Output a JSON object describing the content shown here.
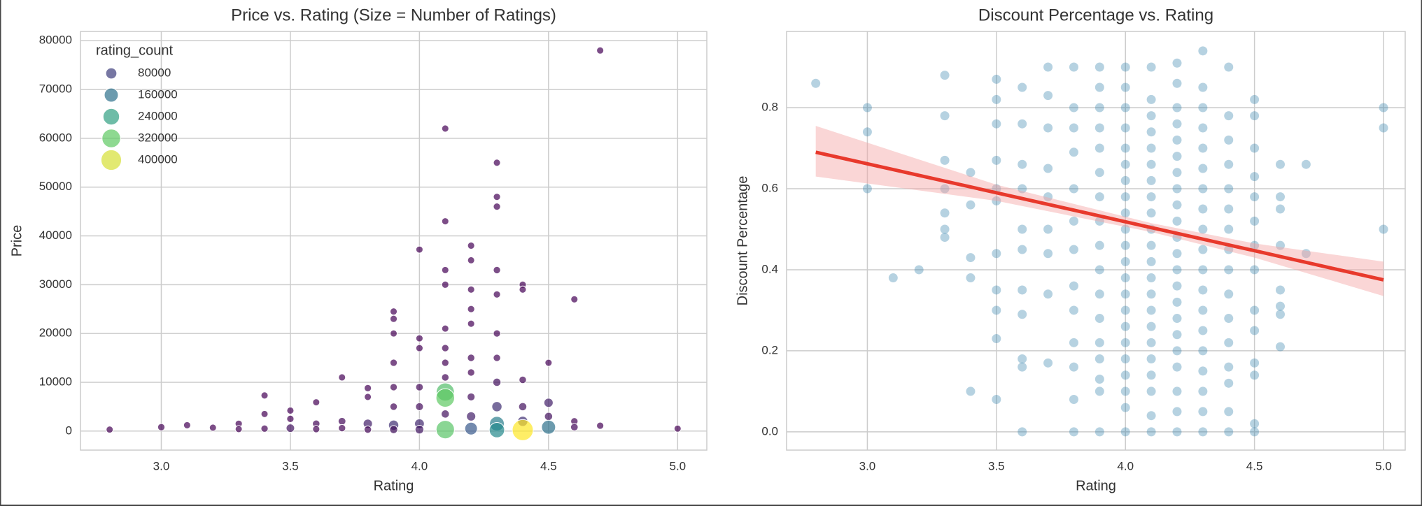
{
  "chart_data": [
    {
      "type": "scatter",
      "title": "Price vs. Rating (Size = Number of Ratings)",
      "xlabel": "Rating",
      "ylabel": "Price",
      "xlim": [
        2.687,
        5.113
      ],
      "ylim": [
        -3900,
        81900
      ],
      "xticks": [
        {
          "value": 3,
          "label": "3.0"
        },
        {
          "value": 3.5,
          "label": "3.5"
        },
        {
          "value": 4,
          "label": "4.0"
        },
        {
          "value": 4.5,
          "label": "4.5"
        },
        {
          "value": 5,
          "label": "5.0"
        }
      ],
      "yticks": [
        0,
        10000,
        20000,
        30000,
        40000,
        50000,
        60000,
        70000,
        80000
      ],
      "grid": true,
      "legend": "upper left",
      "colormap": [
        "#440154",
        "#3b528b",
        "#21918c",
        "#5ec962",
        "#fde725"
      ],
      "x": [
        2.8,
        3.0,
        3.1,
        3.2,
        3.3,
        3.3,
        3.4,
        3.4,
        3.4,
        3.5,
        3.5,
        3.5,
        3.6,
        3.6,
        3.6,
        3.7,
        3.7,
        3.7,
        3.8,
        3.8,
        3.8,
        3.8,
        3.9,
        3.9,
        3.9,
        3.9,
        3.9,
        3.9,
        3.9,
        3.9,
        4.0,
        4.0,
        4.0,
        4.0,
        4.0,
        4.0,
        4.0,
        4.1,
        4.1,
        4.1,
        4.1,
        4.1,
        4.1,
        4.1,
        4.1,
        4.1,
        4.1,
        4.1,
        4.1,
        4.2,
        4.2,
        4.2,
        4.2,
        4.2,
        4.2,
        4.2,
        4.2,
        4.2,
        4.2,
        4.3,
        4.3,
        4.3,
        4.3,
        4.3,
        4.3,
        4.3,
        4.3,
        4.3,
        4.3,
        4.3,
        4.4,
        4.4,
        4.4,
        4.4,
        4.4,
        4.4,
        4.5,
        4.5,
        4.5,
        4.5,
        4.6,
        4.6,
        4.6,
        4.7,
        4.7,
        5.0
      ],
      "series": [
        {
          "edgecolor": "#ffffff",
          "values": [
            300,
            800,
            1200,
            700,
            1500,
            400,
            7300,
            3500,
            500,
            4200,
            2500,
            600,
            5900,
            1500,
            400,
            11000,
            2000,
            600,
            8800,
            7000,
            1500,
            300,
            24500,
            23000,
            20000,
            14000,
            9000,
            5000,
            1200,
            300,
            37200,
            19000,
            17000,
            9000,
            5000,
            1500,
            300,
            62000,
            43000,
            33000,
            30000,
            21000,
            17000,
            14000,
            11000,
            8000,
            6800,
            300,
            3500,
            38000,
            35000,
            29000,
            25000,
            22000,
            15000,
            12000,
            7000,
            3000,
            500,
            55000,
            48000,
            46000,
            33000,
            28000,
            20000,
            15000,
            10000,
            5000,
            1500,
            200,
            30000,
            29000,
            10500,
            5000,
            2000,
            200,
            14000,
            5800,
            3000,
            800,
            27000,
            2000,
            800,
            78000,
            1100,
            500
          ],
          "sizes": [
            2000,
            5000,
            3000,
            2000,
            4000,
            2000,
            3000,
            2000,
            5000,
            3000,
            5000,
            25000,
            2000,
            8000,
            4000,
            3000,
            12000,
            6000,
            5000,
            3000,
            40000,
            8000,
            3000,
            4000,
            2000,
            5000,
            6000,
            8000,
            60000,
            20000,
            2000,
            3000,
            4000,
            10000,
            15000,
            50000,
            30000,
            3000,
            2000,
            3000,
            4000,
            2000,
            6000,
            5000,
            8000,
            300000,
            320000,
            310000,
            20000,
            3000,
            2000,
            4000,
            5000,
            3000,
            8000,
            6000,
            15000,
            40000,
            120000,
            3000,
            4000,
            5000,
            6000,
            4000,
            5000,
            7000,
            20000,
            60000,
            180000,
            200000,
            4000,
            3000,
            8000,
            20000,
            60000,
            426000,
            3000,
            40000,
            20000,
            160000,
            3000,
            6000,
            10000,
            3000,
            4000,
            2000
          ]
        }
      ],
      "size_legend": {
        "title": "rating_count",
        "values": [
          80000,
          160000,
          240000,
          320000,
          400000
        ]
      }
    },
    {
      "type": "scatter",
      "title": "Discount Percentage vs. Rating",
      "xlabel": "Rating",
      "ylabel": "Discount Percentage",
      "xlim": [
        2.687,
        5.084
      ],
      "ylim": [
        -0.045,
        0.988
      ],
      "xticks": [
        {
          "value": 3,
          "label": "3.0"
        },
        {
          "value": 3.5,
          "label": "3.5"
        },
        {
          "value": 4,
          "label": "4.0"
        },
        {
          "value": 4.5,
          "label": "4.5"
        },
        {
          "value": 5,
          "label": "5.0"
        }
      ],
      "yticks": [
        {
          "value": 0,
          "label": "0.0"
        },
        0.2,
        0.4,
        0.6,
        0.8
      ],
      "grid": true,
      "x": [
        2.8,
        3.0,
        3.0,
        3.0,
        3.1,
        3.2,
        3.3,
        3.3,
        3.3,
        3.3,
        3.3,
        3.3,
        3.3,
        3.4,
        3.4,
        3.4,
        3.4,
        3.4,
        3.5,
        3.5,
        3.5,
        3.5,
        3.5,
        3.5,
        3.5,
        3.5,
        3.5,
        3.5,
        3.5,
        3.6,
        3.6,
        3.6,
        3.6,
        3.6,
        3.6,
        3.6,
        3.6,
        3.6,
        3.6,
        3.6,
        3.7,
        3.7,
        3.7,
        3.7,
        3.7,
        3.7,
        3.7,
        3.7,
        3.7,
        3.8,
        3.8,
        3.8,
        3.8,
        3.8,
        3.8,
        3.8,
        3.8,
        3.8,
        3.8,
        3.8,
        3.8,
        3.8,
        3.9,
        3.9,
        3.9,
        3.9,
        3.9,
        3.9,
        3.9,
        3.9,
        3.9,
        3.9,
        3.9,
        3.9,
        3.9,
        3.9,
        3.9,
        3.9,
        3.9,
        4.0,
        4.0,
        4.0,
        4.0,
        4.0,
        4.0,
        4.0,
        4.0,
        4.0,
        4.0,
        4.0,
        4.0,
        4.0,
        4.0,
        4.0,
        4.0,
        4.0,
        4.0,
        4.0,
        4.0,
        4.0,
        4.0,
        4.1,
        4.1,
        4.1,
        4.1,
        4.1,
        4.1,
        4.1,
        4.1,
        4.1,
        4.1,
        4.1,
        4.1,
        4.1,
        4.1,
        4.1,
        4.1,
        4.1,
        4.1,
        4.1,
        4.1,
        4.1,
        4.1,
        4.2,
        4.2,
        4.2,
        4.2,
        4.2,
        4.2,
        4.2,
        4.2,
        4.2,
        4.2,
        4.2,
        4.2,
        4.2,
        4.2,
        4.2,
        4.2,
        4.2,
        4.2,
        4.2,
        4.2,
        4.2,
        4.2,
        4.3,
        4.3,
        4.3,
        4.3,
        4.3,
        4.3,
        4.3,
        4.3,
        4.3,
        4.3,
        4.3,
        4.3,
        4.3,
        4.3,
        4.3,
        4.3,
        4.3,
        4.3,
        4.3,
        4.4,
        4.4,
        4.4,
        4.4,
        4.4,
        4.4,
        4.4,
        4.4,
        4.4,
        4.4,
        4.4,
        4.4,
        4.4,
        4.4,
        4.4,
        4.4,
        4.5,
        4.5,
        4.5,
        4.5,
        4.5,
        4.5,
        4.5,
        4.5,
        4.5,
        4.5,
        4.5,
        4.5,
        4.5,
        4.5,
        4.6,
        4.6,
        4.6,
        4.6,
        4.6,
        4.6,
        4.6,
        4.6,
        4.7,
        4.7,
        5.0,
        5.0,
        5.0
      ],
      "series": [
        {
          "color": "#2f7fa8",
          "values": [
            0.86,
            0.8,
            0.74,
            0.6,
            0.38,
            0.4,
            0.88,
            0.78,
            0.67,
            0.6,
            0.54,
            0.5,
            0.48,
            0.64,
            0.56,
            0.43,
            0.38,
            0.1,
            0.87,
            0.82,
            0.76,
            0.67,
            0.6,
            0.57,
            0.44,
            0.35,
            0.3,
            0.23,
            0.08,
            0.85,
            0.76,
            0.66,
            0.6,
            0.5,
            0.45,
            0.35,
            0.29,
            0.18,
            0.16,
            0.0,
            0.9,
            0.83,
            0.75,
            0.65,
            0.58,
            0.5,
            0.44,
            0.34,
            0.17,
            0.9,
            0.8,
            0.75,
            0.69,
            0.6,
            0.52,
            0.45,
            0.36,
            0.3,
            0.22,
            0.16,
            0.08,
            0.0,
            0.9,
            0.85,
            0.8,
            0.75,
            0.7,
            0.64,
            0.58,
            0.52,
            0.46,
            0.4,
            0.34,
            0.28,
            0.22,
            0.18,
            0.13,
            0.1,
            0.0,
            0.9,
            0.85,
            0.8,
            0.75,
            0.7,
            0.66,
            0.62,
            0.58,
            0.54,
            0.5,
            0.46,
            0.42,
            0.38,
            0.34,
            0.3,
            0.26,
            0.22,
            0.18,
            0.14,
            0.1,
            0.06,
            0.0,
            0.9,
            0.82,
            0.78,
            0.74,
            0.7,
            0.66,
            0.62,
            0.58,
            0.54,
            0.5,
            0.46,
            0.42,
            0.38,
            0.34,
            0.3,
            0.26,
            0.22,
            0.18,
            0.14,
            0.1,
            0.04,
            0.0,
            0.91,
            0.86,
            0.8,
            0.76,
            0.72,
            0.68,
            0.64,
            0.6,
            0.56,
            0.52,
            0.48,
            0.44,
            0.4,
            0.36,
            0.32,
            0.28,
            0.24,
            0.2,
            0.16,
            0.1,
            0.05,
            0.0,
            0.94,
            0.85,
            0.8,
            0.75,
            0.7,
            0.65,
            0.6,
            0.55,
            0.5,
            0.45,
            0.4,
            0.35,
            0.3,
            0.25,
            0.2,
            0.15,
            0.1,
            0.05,
            0.0,
            0.9,
            0.78,
            0.72,
            0.66,
            0.6,
            0.55,
            0.5,
            0.45,
            0.4,
            0.34,
            0.28,
            0.22,
            0.16,
            0.12,
            0.05,
            0.0,
            0.82,
            0.78,
            0.7,
            0.63,
            0.58,
            0.52,
            0.46,
            0.4,
            0.3,
            0.25,
            0.17,
            0.14,
            0.02,
            0.0,
            0.66,
            0.58,
            0.55,
            0.46,
            0.35,
            0.31,
            0.29,
            0.21,
            0.66,
            0.44,
            0.8,
            0.75,
            0.5
          ]
        }
      ],
      "regression": {
        "color": "#e8392c",
        "x": [
          2.8,
          3.5,
          4.1,
          4.5,
          5.0
        ],
        "values": [
          0.69,
          0.59,
          0.504,
          0.447,
          0.375
        ],
        "upper": [
          0.755,
          0.61,
          0.515,
          0.465,
          0.42
        ],
        "lower": [
          0.63,
          0.57,
          0.493,
          0.43,
          0.335
        ],
        "band_color": "#f4a3a3"
      }
    }
  ]
}
